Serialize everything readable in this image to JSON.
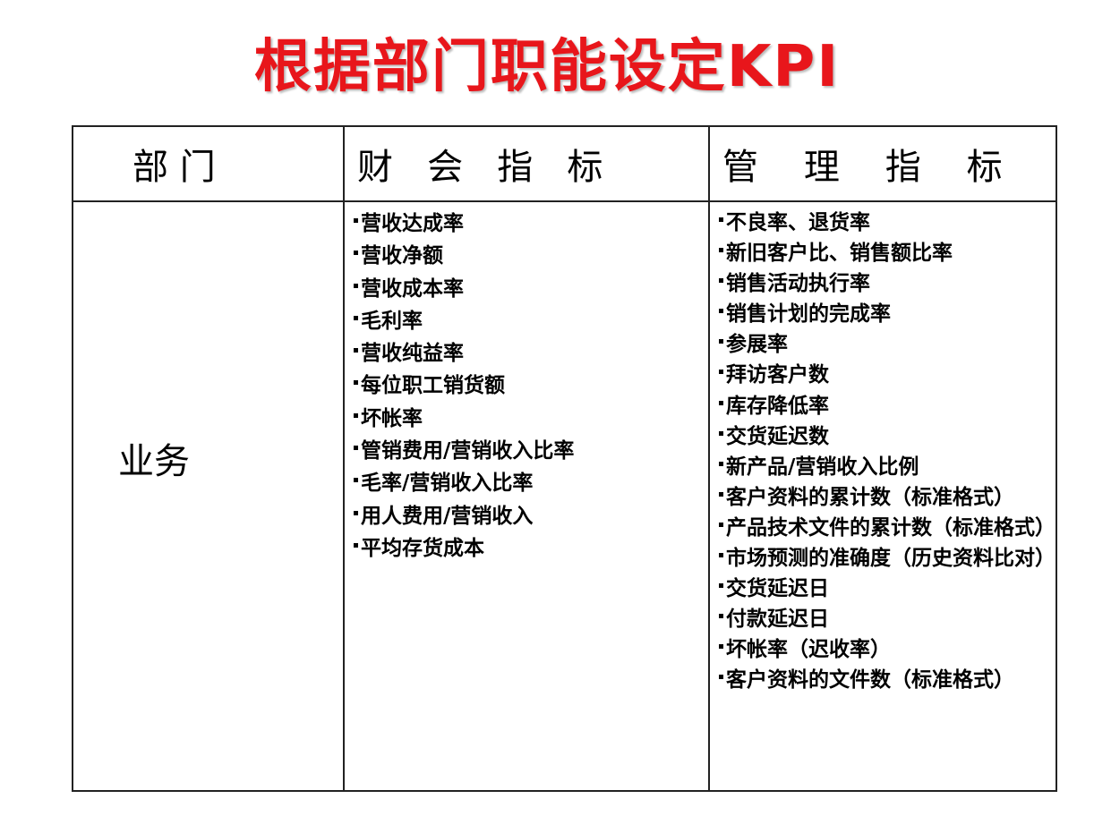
{
  "title": "根据部门职能设定KPI",
  "colors": {
    "title": "#e8161b"
  },
  "table": {
    "headers": [
      "部 门",
      "财   会   指   标",
      "管    理    指    标"
    ],
    "rows": [
      {
        "department": "业务",
        "financial_indicators": [
          "营收达成率",
          "营收净额",
          "营收成本率",
          "毛利率",
          "营收纯益率",
          "每位职工销货额",
          "坏帐率",
          "管销费用/营销收入比率",
          "毛率/营销收入比率",
          "用人费用/营销收入",
          "平均存货成本"
        ],
        "management_indicators": [
          "不良率、退货率",
          "新旧客户比、销售额比率",
          "销售活动执行率",
          "销售计划的完成率",
          "参展率",
          "拜访客户数",
          "库存降低率",
          "交货延迟数",
          "新产品/营销收入比例",
          "客户资料的累计数（标准格式）",
          "产品技术文件的累计数（标准格式）",
          "市场预测的准确度（历史资料比对）",
          "交货延迟日",
          "付款延迟日",
          "坏帐率（迟收率）",
          "客户资料的文件数（标准格式）"
        ]
      }
    ]
  }
}
